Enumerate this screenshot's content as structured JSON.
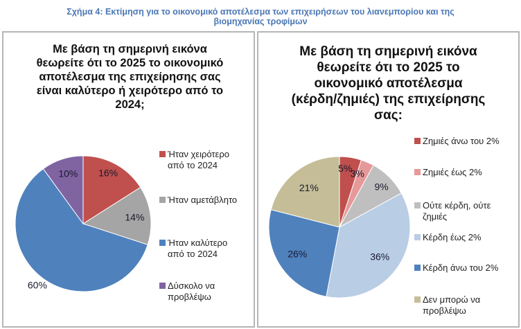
{
  "figure_title_line1": "Σχήμα 4: Εκτίμηση για το οικονομικό αποτέλεσμα των επιχειρήσεων του λιανεμπορίου και της",
  "figure_title_line2": "βιομηχανίας τροφίμων",
  "chart_data": [
    {
      "type": "pie",
      "title_lines": [
        "Με βάση τη σημερινή εικόνα",
        "θεωρείτε ότι το 2025 το οικονομικό",
        "αποτέλεσμα της επιχείρησης σας",
        "είναι καλύτερο ή χειρότερο από το",
        "2024;"
      ],
      "categories": [
        "Ήταν χειρότερο από το 2024",
        "Ήταν αμετάβλητο",
        "Ήταν καλύτερο από το 2024",
        "Δύσκολο να προβλέψω"
      ],
      "legend_lines": [
        [
          "Ήταν χειρότερο",
          "από το 2024"
        ],
        [
          "Ήταν αμετάβλητο"
        ],
        [
          "Ήταν καλύτερο",
          "από το 2024"
        ],
        [
          "Δύσκολο να",
          "προβλέψω"
        ]
      ],
      "values": [
        16,
        14,
        60,
        10
      ],
      "labels": [
        "16%",
        "14%",
        "60%",
        "10%"
      ],
      "colors": [
        "#C0504D",
        "#A5A5A5",
        "#4F81BD",
        "#8064A2"
      ],
      "legend_position": "right"
    },
    {
      "type": "pie",
      "title_lines": [
        "Με βάση τη σημερινή εικόνα",
        "θεωρείτε ότι το 2025 το",
        "οικονομικό αποτέλεσμα",
        "(κέρδη/ζημιές) της επιχείρησης",
        "σας:"
      ],
      "categories": [
        "Ζημιές άνω του 2%",
        "Ζημιές έως 2%",
        "Ούτε κέρδη, ούτε ζημιές",
        "Κέρδη έως 2%",
        "Κέρδη άνω του 2%",
        "Δεν μπορώ να προβλέψω"
      ],
      "legend_lines": [
        [
          "Ζημιές άνω του 2%"
        ],
        [
          "Ζημιές έως 2%"
        ],
        [
          "Ούτε κέρδη, ούτε",
          "ζημιές"
        ],
        [
          "Κέρδη έως 2%"
        ],
        [
          "Κέρδη άνω του 2%"
        ],
        [
          "Δεν μπορώ να",
          "προβλέψω"
        ]
      ],
      "values": [
        5,
        3,
        9,
        36,
        26,
        21
      ],
      "labels": [
        "5%",
        "3%",
        "9%",
        "36%",
        "26%",
        "21%"
      ],
      "colors": [
        "#C0504D",
        "#E6999A",
        "#BFBFBF",
        "#B9CDE5",
        "#4F81BD",
        "#C4BD97"
      ],
      "legend_position": "right"
    }
  ]
}
